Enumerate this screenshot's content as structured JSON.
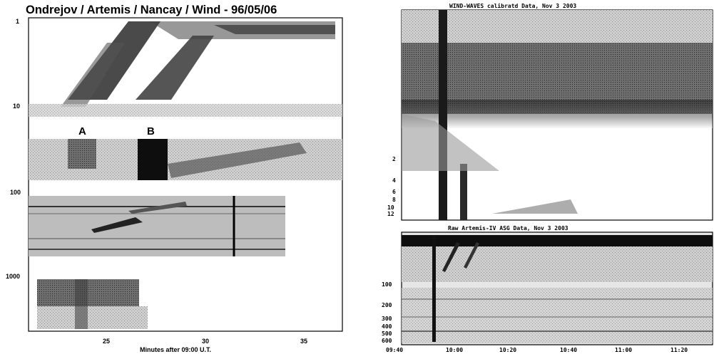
{
  "left_panel": {
    "title": "Ondrejov / Artemis / Nancay / Wind - 96/05/06",
    "y_ticks": [
      "1",
      "10",
      "100",
      "1000"
    ],
    "x_ticks": [
      "25",
      "30",
      "35"
    ],
    "x_label": "Minutes after 09:00 U.T.",
    "burst_labels": [
      "A",
      "B"
    ]
  },
  "right_panel": {
    "top_title": "WIND-WAVES calibratd Data, Nov  3 2003",
    "top_y_ticks": [
      "2",
      "4",
      "6",
      "8",
      "10",
      "12"
    ],
    "bottom_title": "Raw  Artemis-IV  ASG Data, Nov  3 2003",
    "bottom_y_ticks": [
      "100",
      "200",
      "300",
      "400",
      "500",
      "600"
    ],
    "x_ticks": [
      "09:40",
      "10:00",
      "10:20",
      "10:40",
      "11:00",
      "11:20"
    ]
  },
  "colors": {
    "background": "#ffffff",
    "ink": "#000000",
    "gray_light": "#d9d9d9",
    "gray_mid": "#8c8c8c",
    "gray_dark": "#333333"
  }
}
